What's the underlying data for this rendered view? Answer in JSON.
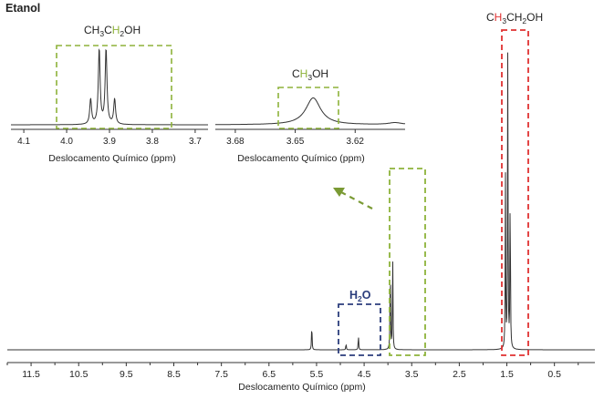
{
  "chart_data": {
    "type": "line",
    "title": "Etanol",
    "main": {
      "xlabel": "Deslocamento Químico (ppm)",
      "xlim": [
        12.0,
        -0.35
      ],
      "ticks": [
        11.5,
        10.5,
        9.5,
        8.5,
        7.5,
        6.5,
        5.5,
        4.5,
        3.5,
        2.5,
        1.5,
        0.5
      ],
      "tick_labels": [
        "11.5",
        "10.5",
        "9.5",
        "8.5",
        "7.5",
        "6.5",
        "5.5",
        "4.5",
        "3.5",
        "2.5",
        "1.5",
        "0.5"
      ],
      "peaks": [
        {
          "ppm": 5.6,
          "height": 0.092
        },
        {
          "ppm": 4.88,
          "height": 0.022
        },
        {
          "ppm": 4.62,
          "height": 0.05
        },
        {
          "ppm": 3.95,
          "height": 0.31
        },
        {
          "ppm": 3.9,
          "height": 0.32
        },
        {
          "ppm": 1.53,
          "height": 0.56
        },
        {
          "ppm": 1.48,
          "height": 0.99
        },
        {
          "ppm": 1.43,
          "height": 0.56
        }
      ],
      "annotations": {
        "h2o": {
          "label": "H",
          "sub": "2",
          "tail": "O",
          "color": "#2b3d7c"
        },
        "ch3": {
          "prefix": "C",
          "highlight": "H",
          "sub1": "3",
          "rest": "CH",
          "sub2": "2",
          "tail": "OH",
          "highlight_color": "#e03131"
        },
        "arrow_color": "#7a9a34",
        "box_green": "#8db23a",
        "box_red": "#e03131",
        "box_blue": "#2b3d7c"
      }
    },
    "inset_ch2": {
      "xlim": [
        4.13,
        3.67
      ],
      "ticks": [
        4.1,
        4.0,
        3.9,
        3.8,
        3.7
      ],
      "tick_labels": [
        "4.1",
        "4.0",
        "3.9",
        "3.8",
        "3.7"
      ],
      "xlabel": "Deslocamento Químico (ppm)",
      "peaks": [
        3.944,
        3.924,
        3.908,
        3.888
      ],
      "peak_heights": [
        0.31,
        0.92,
        0.92,
        0.31
      ],
      "label": {
        "prefix": "CH",
        "sub1": "3",
        "pre2": "C",
        "highlight": "H",
        "sub2": "2",
        "tail": "OH",
        "highlight_color": "#8db23a"
      }
    },
    "inset_ch3oh": {
      "xlim": [
        3.69,
        3.595
      ],
      "ticks": [
        3.68,
        3.65,
        3.62
      ],
      "tick_labels": [
        "3.68",
        "3.65",
        "3.62"
      ],
      "xlabel": "Deslocamento Químico (ppm)",
      "peak_ppm": 3.641,
      "peak_height": 0.82,
      "label": {
        "pre": "C",
        "highlight": "H",
        "sub": "3",
        "tail": "OH",
        "highlight_color": "#8db23a"
      }
    }
  }
}
